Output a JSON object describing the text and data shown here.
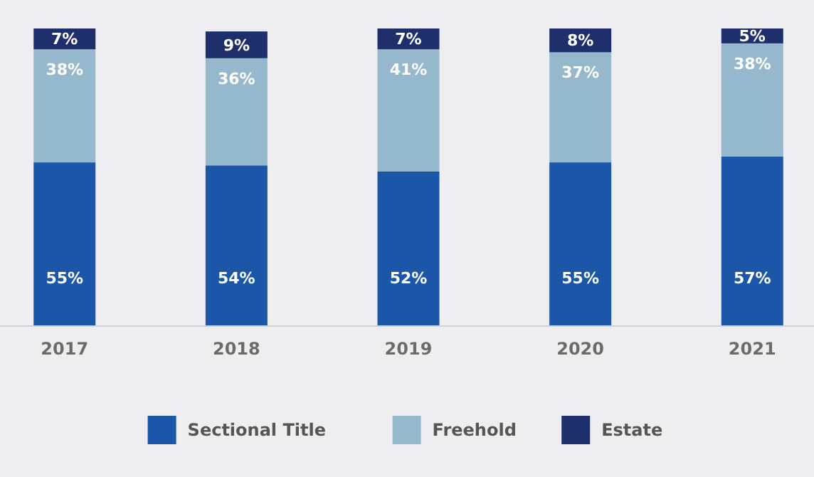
{
  "chart_data": {
    "type": "bar",
    "stacked": true,
    "legend": "bottom",
    "categories": [
      "2017",
      "2018",
      "2019",
      "2020",
      "2021"
    ],
    "series": [
      {
        "name": "Sectional Title",
        "color": "#1b56a8",
        "values": [
          55,
          54,
          52,
          55,
          57
        ],
        "value_labels": [
          "55%",
          "54%",
          "52%",
          "55%",
          "57%"
        ]
      },
      {
        "name": "Freehold",
        "color": "#95b8cc",
        "values": [
          38,
          36,
          41,
          37,
          38
        ],
        "value_labels": [
          "38%",
          "36%",
          "41%",
          "37%",
          "38%"
        ]
      },
      {
        "name": "Estate",
        "color": "#1f2f6b",
        "values": [
          7,
          9,
          7,
          8,
          5
        ],
        "value_labels": [
          "7%",
          "9%",
          "7%",
          "8%",
          "5%"
        ]
      }
    ]
  }
}
